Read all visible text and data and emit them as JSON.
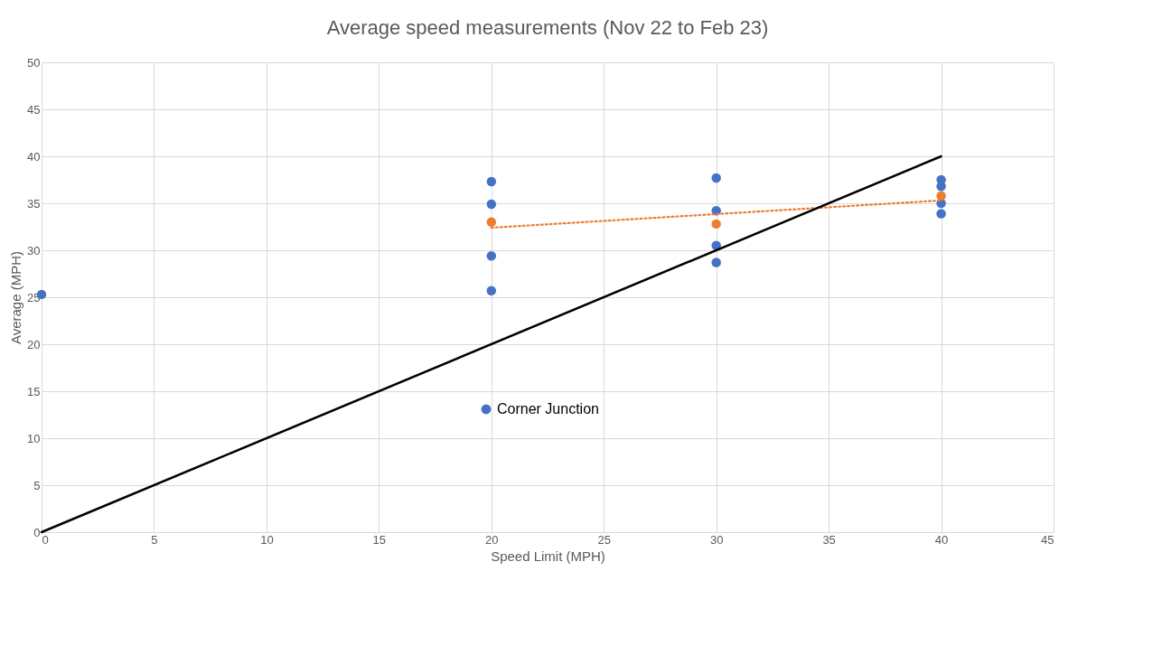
{
  "chart_data": {
    "type": "scatter",
    "title": "Average speed measurements (Nov 22 to Feb 23)",
    "xlabel": "Speed Limit   (MPH)",
    "ylabel": "Average  (MPH)",
    "series": [
      {
        "name": "Corner Junction",
        "color": "#4472c4",
        "x": [
          0,
          20,
          20,
          20,
          20,
          30,
          30,
          30,
          30,
          40,
          40,
          40,
          40
        ],
        "values": [
          25.3,
          37.3,
          34.9,
          29.4,
          25.7,
          37.7,
          34.2,
          30.5,
          28.7,
          37.5,
          36.8,
          35.0,
          33.9
        ]
      },
      {
        "color": "#ed7d31",
        "x": [
          20,
          30,
          40
        ],
        "values": [
          33.0,
          32.8,
          35.8
        ]
      },
      {
        "color": "#ed7d31",
        "type": "line",
        "marker": "none",
        "line_style": "dotted",
        "x": [
          20,
          40
        ],
        "values": [
          32.4,
          35.3
        ]
      },
      {
        "color": "#000000",
        "type": "line",
        "marker": "none",
        "line_style": "solid",
        "x": [
          0,
          40
        ],
        "values": [
          0,
          40
        ]
      }
    ],
    "xlim": [
      0,
      45
    ],
    "xticks": [
      0,
      5,
      10,
      15,
      20,
      25,
      30,
      35,
      40,
      45
    ],
    "ylim": [
      0,
      50
    ],
    "yticks": [
      0,
      5,
      10,
      15,
      20,
      25,
      30,
      35,
      40,
      45,
      50
    ],
    "grid": true,
    "legend": "bottom",
    "marker": "circle"
  }
}
